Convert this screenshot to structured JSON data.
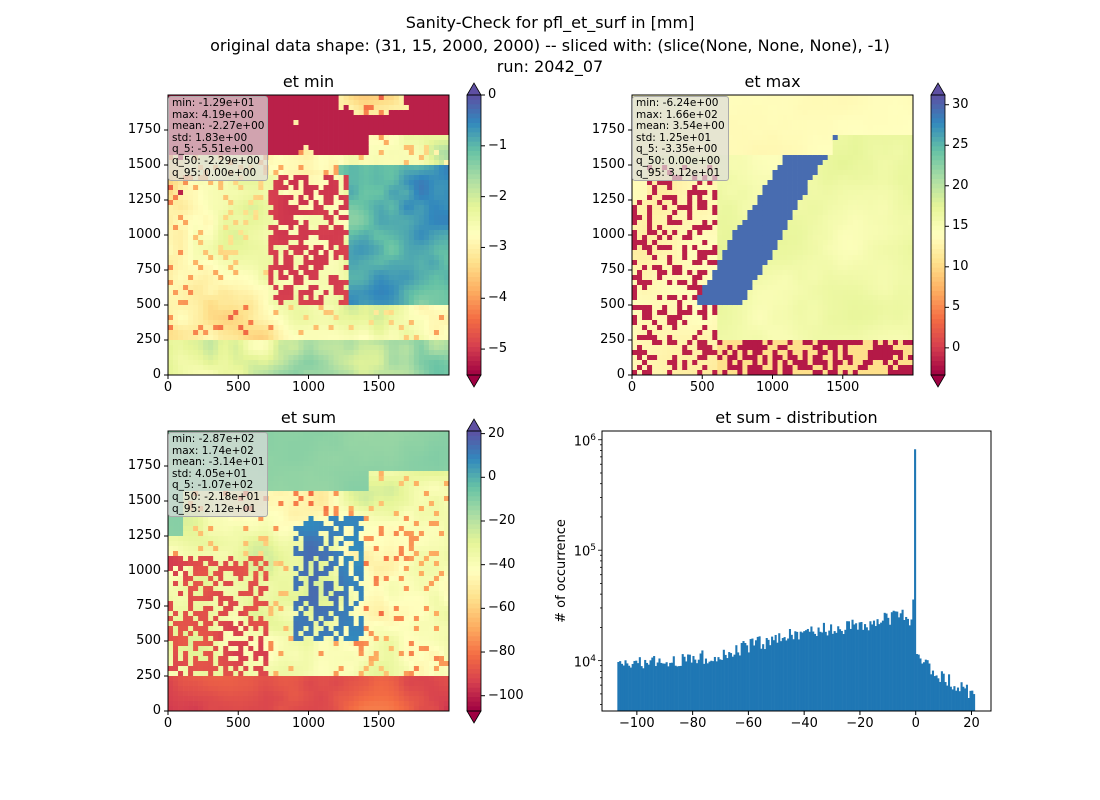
{
  "figure": {
    "title_lines": [
      "Sanity-Check for pfl_et_surf in [mm]",
      "original data shape: (31, 15, 2000, 2000) -- sliced with: (slice(None, None, None), -1)",
      "run: 2042_07"
    ]
  },
  "chart_data": [
    {
      "type": "heatmap",
      "title": "et min",
      "x_ticks": [
        0,
        500,
        1000,
        1500
      ],
      "y_ticks": [
        0,
        250,
        500,
        750,
        1000,
        1250,
        1500,
        1750
      ],
      "xlim": [
        0,
        2000
      ],
      "ylim": [
        0,
        2000
      ],
      "colorbar": {
        "cmap": "Spectral",
        "range": [
          -5.51,
          0.0
        ],
        "ticks": [
          0,
          -1,
          -2,
          -3,
          -4,
          -5
        ],
        "extend": "both"
      },
      "stats": [
        "min: -1.29e+01",
        "max: 4.19e+00",
        "mean: -2.27e+00",
        "std: 1.83e+00",
        "q_5: -5.51e+00",
        "q_50: -2.29e+00",
        "q_95: 0.00e+00"
      ]
    },
    {
      "type": "heatmap",
      "title": "et max",
      "x_ticks": [
        0,
        500,
        1000,
        1500
      ],
      "y_ticks": [
        0,
        250,
        500,
        750,
        1000,
        1250,
        1500,
        1750
      ],
      "xlim": [
        0,
        2000
      ],
      "ylim": [
        0,
        2000
      ],
      "colorbar": {
        "cmap": "Spectral",
        "range": [
          -3.35,
          31.2
        ],
        "ticks": [
          30,
          25,
          20,
          15,
          10,
          5,
          0
        ],
        "extend": "both"
      },
      "stats": [
        "min: -6.24e+00",
        "max: 1.66e+02",
        "mean: 3.54e+00",
        "std: 1.25e+01",
        "q_5: -3.35e+00",
        "q_50: 0.00e+00",
        "q_95: 3.12e+01"
      ]
    },
    {
      "type": "heatmap",
      "title": "et sum",
      "x_ticks": [
        0,
        500,
        1000,
        1500
      ],
      "y_ticks": [
        0,
        250,
        500,
        750,
        1000,
        1250,
        1500,
        1750
      ],
      "xlim": [
        0,
        2000
      ],
      "ylim": [
        0,
        2000
      ],
      "colorbar": {
        "cmap": "Spectral",
        "range": [
          -107,
          21.2
        ],
        "ticks": [
          20,
          0,
          -20,
          -40,
          -60,
          -80,
          -100
        ],
        "extend": "both"
      },
      "stats": [
        "min: -2.87e+02",
        "max: 1.74e+02",
        "mean: -3.14e+01",
        "std: 4.05e+01",
        "q_5: -1.07e+02",
        "q_50: -2.18e+01",
        "q_95: 2.12e+01"
      ]
    },
    {
      "type": "bar",
      "title": "et sum - distribution",
      "ylabel": "# of occurrence",
      "xlabel": "",
      "yscale": "log",
      "color": "#1f77b4",
      "x_ticks": [
        -100,
        -80,
        -60,
        -40,
        -20,
        0,
        20
      ],
      "y_ticks": [
        {
          "value": 10000,
          "base": "10",
          "exp": "4"
        },
        {
          "value": 100000,
          "base": "10",
          "exp": "5"
        },
        {
          "value": 1000000,
          "base": "10",
          "exp": "6"
        }
      ],
      "xlim": [
        -112.5,
        27
      ],
      "ylim": [
        3500,
        1200000
      ],
      "bins": {
        "start": -107,
        "end": 21.2,
        "count": 200
      },
      "profile": [
        {
          "x": -107,
          "y": 8500
        },
        {
          "x": -100,
          "y": 9500
        },
        {
          "x": -90,
          "y": 9800
        },
        {
          "x": -80,
          "y": 10500
        },
        {
          "x": -70,
          "y": 11500
        },
        {
          "x": -60,
          "y": 13500
        },
        {
          "x": -50,
          "y": 16000
        },
        {
          "x": -40,
          "y": 18000
        },
        {
          "x": -30,
          "y": 20000
        },
        {
          "x": -20,
          "y": 21000
        },
        {
          "x": -10,
          "y": 24000
        },
        {
          "x": -5,
          "y": 27000
        },
        {
          "x": -2.5,
          "y": 22000
        },
        {
          "x": -1,
          "y": 23000
        },
        {
          "x": -0.4,
          "y": 820000
        },
        {
          "x": 0.3,
          "y": 11000
        },
        {
          "x": 5,
          "y": 8500
        },
        {
          "x": 10,
          "y": 7000
        },
        {
          "x": 15,
          "y": 6000
        },
        {
          "x": 21,
          "y": 4800
        }
      ]
    }
  ]
}
